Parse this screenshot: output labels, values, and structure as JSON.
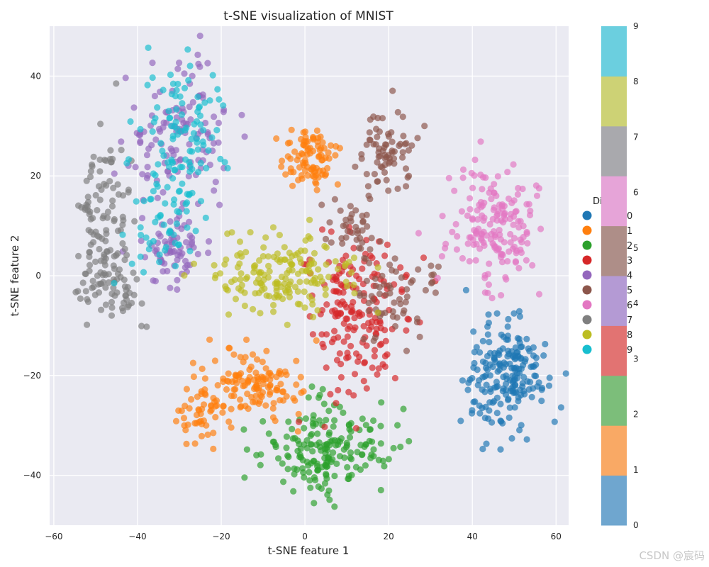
{
  "chart_data": {
    "type": "scatter",
    "title": "t-SNE visualization of MNIST",
    "xlabel": "t-SNE feature 1",
    "ylabel": "t-SNE feature 2",
    "xlim": [
      -61,
      63
    ],
    "ylim": [
      -50,
      50
    ],
    "xticks": [
      -60,
      -40,
      -20,
      0,
      20,
      40,
      60
    ],
    "yticks": [
      -40,
      -20,
      0,
      20,
      40
    ],
    "grid": true,
    "legend": {
      "title": "Di",
      "entries": [
        "0",
        "1",
        "2",
        "3",
        "4",
        "5",
        "6",
        "7",
        "8",
        "9"
      ],
      "placement": "right, partially hidden behind colorbar"
    },
    "colorbar": {
      "ticks": [
        "0",
        "1",
        "2",
        "3",
        "4",
        "5",
        "6",
        "7",
        "8",
        "9"
      ]
    },
    "series": [
      {
        "name": "0",
        "color": "#1f77b4",
        "center": [
          48,
          -20
        ],
        "spread": [
          5.5,
          5.5
        ],
        "count": 200
      },
      {
        "name": "1",
        "color": "#ff7f0e",
        "clusters": [
          {
            "center": [
              -12,
              -21
            ],
            "spread": [
              6,
              3.5
            ],
            "count": 120
          },
          {
            "center": [
              -25,
              -27
            ],
            "spread": [
              2.5,
              3
            ],
            "count": 50
          },
          {
            "center": [
              1,
              24
            ],
            "spread": [
              2.8,
              3.5
            ],
            "count": 90
          }
        ]
      },
      {
        "name": "2",
        "color": "#2ca02c",
        "clusters": [
          {
            "center": [
              6,
              -36
            ],
            "spread": [
              8,
              4
            ],
            "count": 180
          },
          {
            "center": [
              3,
              -25
            ],
            "spread": [
              2,
              2
            ],
            "count": 10
          }
        ]
      },
      {
        "name": "3",
        "color": "#d62728",
        "center": [
          12,
          -8
        ],
        "spread": [
          6,
          8
        ],
        "count": 180
      },
      {
        "name": "4",
        "color": "#9467bd",
        "clusters": [
          {
            "center": [
              -30,
              28
            ],
            "spread": [
              6,
              7
            ],
            "count": 120
          },
          {
            "center": [
              -31,
              5
            ],
            "spread": [
              4,
              4
            ],
            "count": 70
          }
        ]
      },
      {
        "name": "5",
        "color": "#8c564b",
        "clusters": [
          {
            "center": [
              20,
              25
            ],
            "spread": [
              3.5,
              4
            ],
            "count": 70
          },
          {
            "center": [
              22,
              -3
            ],
            "spread": [
              5,
              5
            ],
            "count": 60
          },
          {
            "center": [
              13,
              10
            ],
            "spread": [
              4,
              3
            ],
            "count": 40
          }
        ]
      },
      {
        "name": "6",
        "color": "#e377c2",
        "center": [
          45,
          9
        ],
        "spread": [
          5.5,
          6
        ],
        "count": 170
      },
      {
        "name": "7",
        "color": "#7f7f7f",
        "clusters": [
          {
            "center": [
              -48,
              12
            ],
            "spread": [
              3.5,
              8
            ],
            "count": 100
          },
          {
            "center": [
              -46,
              -3
            ],
            "spread": [
              4,
              4
            ],
            "count": 60
          }
        ]
      },
      {
        "name": "8",
        "color": "#bcbd22",
        "center": [
          -6,
          0
        ],
        "spread": [
          8,
          4
        ],
        "count": 170
      },
      {
        "name": "9",
        "color": "#17becf",
        "clusters": [
          {
            "center": [
              -28,
              30
            ],
            "spread": [
              5,
              6
            ],
            "count": 90
          },
          {
            "center": [
              -34,
              12
            ],
            "spread": [
              4,
              6
            ],
            "count": 60
          }
        ]
      }
    ]
  },
  "watermark": "CSDN @宸码"
}
